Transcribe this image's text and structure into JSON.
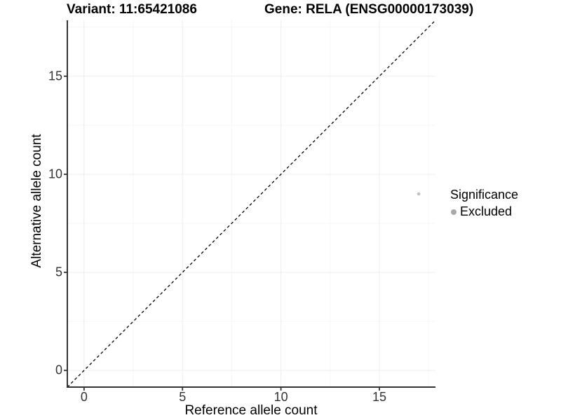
{
  "titles": {
    "variant": "Variant: 11:65421086",
    "gene": "Gene: RELA (ENSG00000173039)"
  },
  "axes": {
    "x_title": "Reference allele count",
    "y_title": "Alternative allele count"
  },
  "legend": {
    "title": "Significance",
    "items": [
      {
        "label": "Excluded",
        "color": "#a8a8a8"
      }
    ]
  },
  "colors": {
    "background": "#ffffff",
    "axis_line": "#333333",
    "tick_label": "#333333",
    "grid_major": "#ececec",
    "grid_minor": "#f5f5f5",
    "identity_line": "#000000",
    "point": "#c2c2c2"
  },
  "chart_data": {
    "type": "scatter",
    "title": "Variant: 11:65421086        Gene: RELA (ENSG00000173039)",
    "xlabel": "Reference allele count",
    "ylabel": "Alternative allele count",
    "xlim": [
      -0.85,
      17.85
    ],
    "ylim": [
      -0.85,
      17.85
    ],
    "x_ticks": [
      0,
      5,
      10,
      15
    ],
    "y_ticks": [
      0,
      5,
      10,
      15
    ],
    "x_minor_ticks": [
      2.5,
      7.5,
      12.5,
      17.5
    ],
    "y_minor_ticks": [
      2.5,
      7.5,
      12.5,
      17.5
    ],
    "grid": "major and minor gridlines, white panel",
    "legend_position": "right-center",
    "legend_title": "Significance",
    "series": [
      {
        "name": "Excluded",
        "marker": "circle",
        "marker_color": "#c2c2c2",
        "points": [
          {
            "x": 17,
            "y": 9
          }
        ]
      }
    ],
    "identity_line": {
      "description": "y = x diagonal reference line spanning full panel",
      "style": "dashed",
      "color": "#000000",
      "from": [
        -0.85,
        -0.85
      ],
      "to": [
        17.85,
        17.85
      ]
    }
  }
}
